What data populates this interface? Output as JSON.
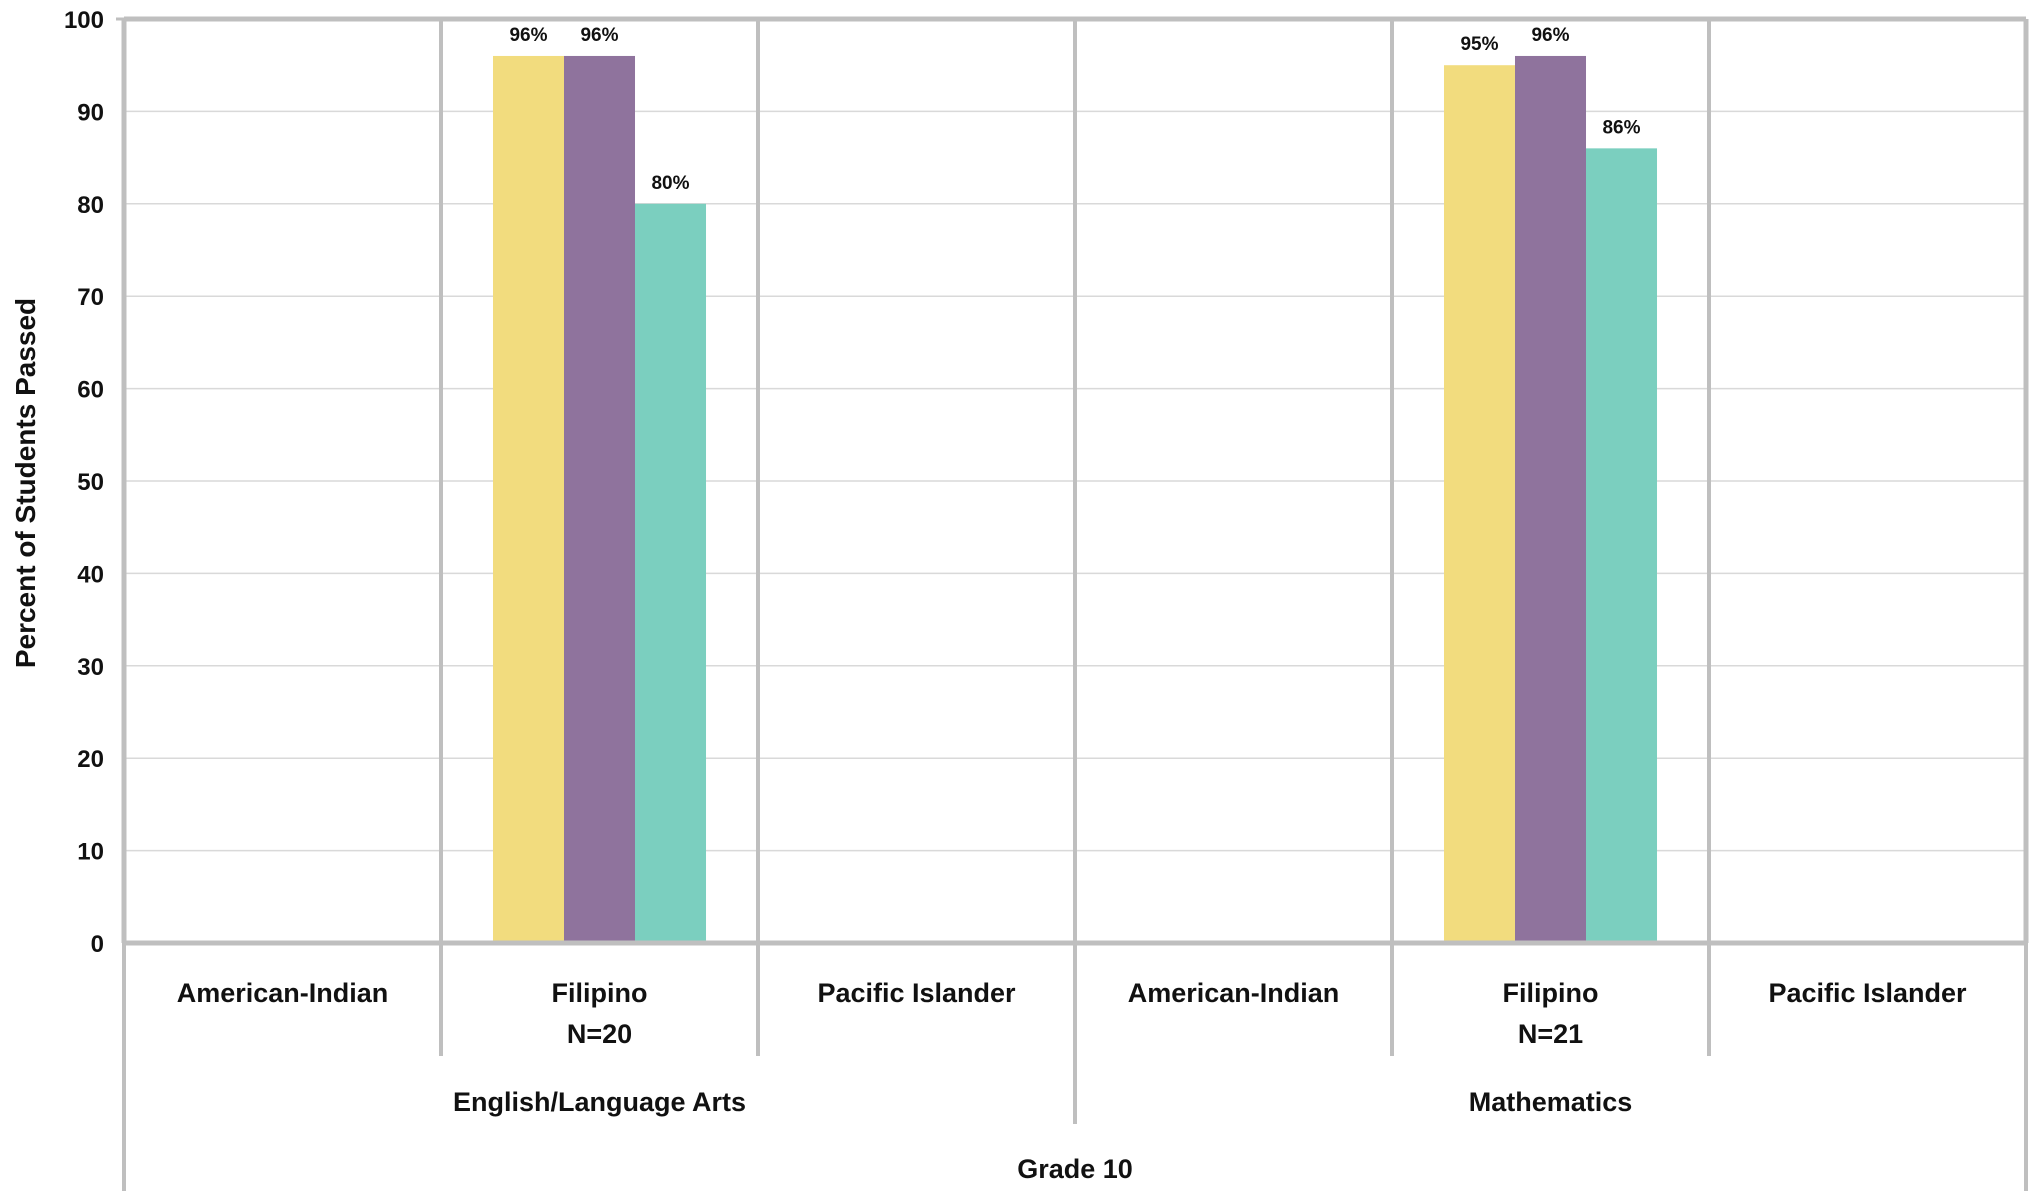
{
  "chart_data": {
    "type": "bar",
    "ylabel": "Percent of Students Passed",
    "ylim": [
      0,
      100
    ],
    "yticks": [
      0,
      10,
      20,
      30,
      40,
      50,
      60,
      70,
      80,
      90,
      100
    ],
    "grid": true,
    "outer_group_label": "Grade 10",
    "subjects": [
      "English/Language Arts",
      "Mathematics"
    ],
    "categories": [
      {
        "subject": "English/Language Arts",
        "label": "American-Indian",
        "n_label": "",
        "values": []
      },
      {
        "subject": "English/Language Arts",
        "label": "Filipino",
        "n_label": "N=20",
        "values": [
          96,
          96,
          80
        ]
      },
      {
        "subject": "English/Language Arts",
        "label": "Pacific Islander",
        "n_label": "",
        "values": []
      },
      {
        "subject": "Mathematics",
        "label": "American-Indian",
        "n_label": "",
        "values": []
      },
      {
        "subject": "Mathematics",
        "label": "Filipino",
        "n_label": "N=21",
        "values": [
          95,
          96,
          86
        ]
      },
      {
        "subject": "Mathematics",
        "label": "Pacific Islander",
        "n_label": "",
        "values": []
      }
    ],
    "series_colors": [
      "#F2DC7E",
      "#8F739D",
      "#7BCFBF"
    ],
    "value_suffix": "%"
  },
  "colors": {
    "axis": "#BFBFBF",
    "grid": "#D9D9D9"
  }
}
